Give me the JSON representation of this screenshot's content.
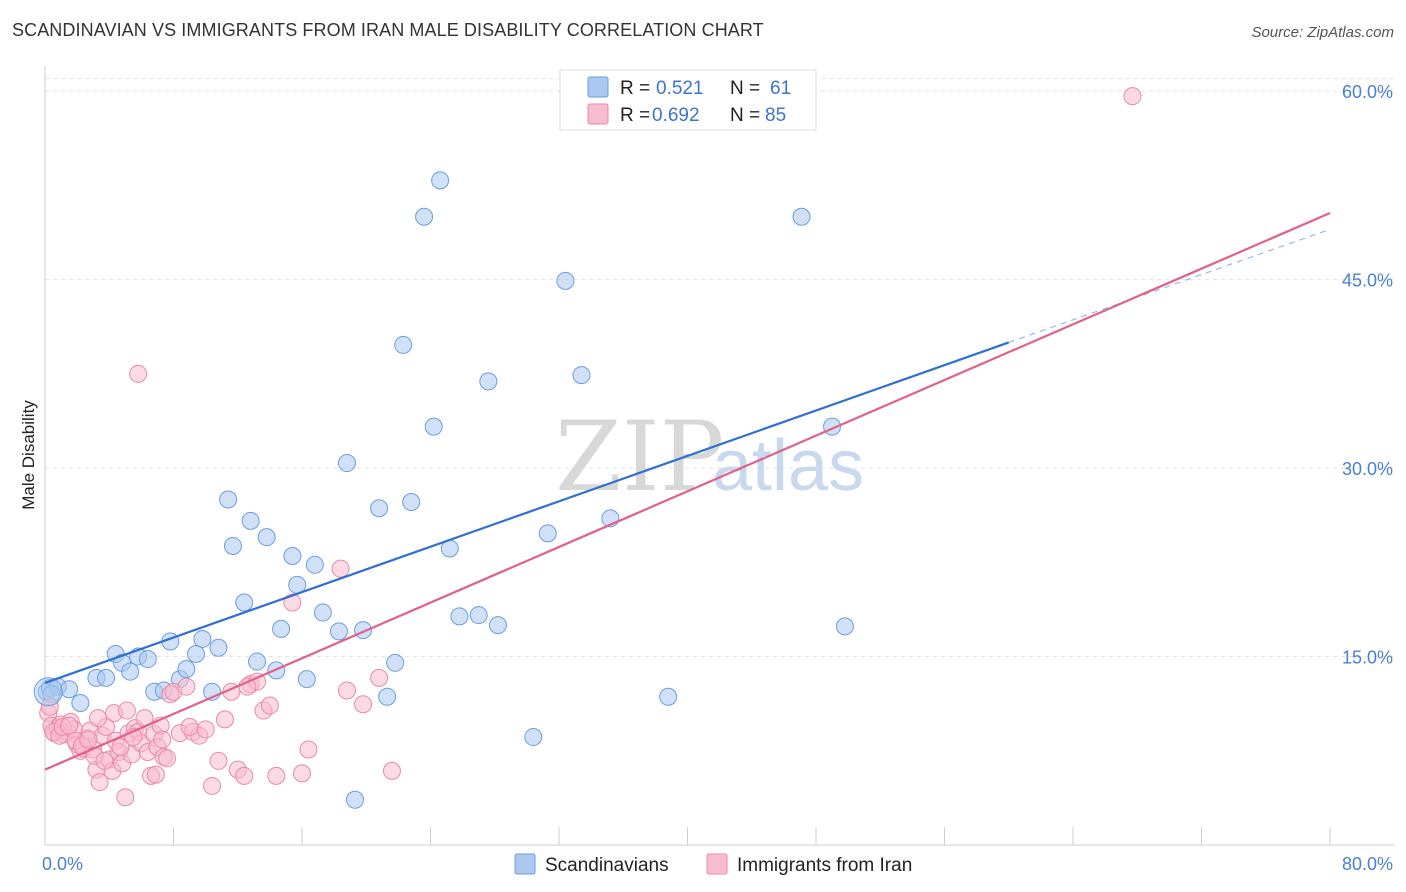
{
  "title": "SCANDINAVIAN VS IMMIGRANTS FROM IRAN MALE DISABILITY CORRELATION CHART",
  "source": "Source: ZipAtlas.com",
  "watermark": {
    "zip": "ZIP",
    "atlas": "atlas"
  },
  "legend": {
    "rows": [
      {
        "r_label": "R =",
        "r_value": "0.521",
        "n_label": "N =",
        "n_value": "61",
        "color": "#aac8f0",
        "stroke": "#6a9ee0"
      },
      {
        "r_label": "R =",
        "r_value": "0.692",
        "n_label": "N =",
        "n_value": "85",
        "color": "#f8bcd0",
        "stroke": "#e88aa8"
      }
    ]
  },
  "chart_data": {
    "type": "scatter",
    "title": "SCANDINAVIAN VS IMMIGRANTS FROM IRAN MALE DISABILITY CORRELATION CHART",
    "xlabel": "",
    "ylabel": "Male Disability",
    "xlim": [
      0,
      80
    ],
    "ylim": [
      0,
      62
    ],
    "x_tick_labels": [
      "0.0%",
      "80.0%"
    ],
    "y_ticks": [
      15,
      30,
      45,
      60
    ],
    "y_tick_labels": [
      "15.0%",
      "30.0%",
      "45.0%",
      "60.0%"
    ],
    "grid": true,
    "legend_position": "top-center",
    "series": [
      {
        "name": "Scandinavians",
        "color": "#aac8f0",
        "stroke": "#6a9ee0",
        "line_color": "#2f6fcf",
        "trend": {
          "x": [
            0,
            60
          ],
          "y": [
            12.9,
            40.0
          ],
          "dashed_to": [
            80,
            49.0
          ]
        },
        "points": [
          [
            0.1,
            12.2
          ],
          [
            0.3,
            12.5
          ],
          [
            0.8,
            12.6
          ],
          [
            1.5,
            12.4
          ],
          [
            2.2,
            11.3
          ],
          [
            3.2,
            13.3
          ],
          [
            3.8,
            13.3
          ],
          [
            4.4,
            15.2
          ],
          [
            4.8,
            14.5
          ],
          [
            5.3,
            13.8
          ],
          [
            5.8,
            15.0
          ],
          [
            6.4,
            14.8
          ],
          [
            6.8,
            12.2
          ],
          [
            7.4,
            12.3
          ],
          [
            7.8,
            16.2
          ],
          [
            8.4,
            13.2
          ],
          [
            8.8,
            14.0
          ],
          [
            9.4,
            15.2
          ],
          [
            9.8,
            16.4
          ],
          [
            10.4,
            12.2
          ],
          [
            10.8,
            15.7
          ],
          [
            11.4,
            27.5
          ],
          [
            11.7,
            23.8
          ],
          [
            12.4,
            19.3
          ],
          [
            12.8,
            25.8
          ],
          [
            13.2,
            14.6
          ],
          [
            13.8,
            24.5
          ],
          [
            14.4,
            13.9
          ],
          [
            14.7,
            17.2
          ],
          [
            15.4,
            23.0
          ],
          [
            15.7,
            20.7
          ],
          [
            16.3,
            13.2
          ],
          [
            16.8,
            22.3
          ],
          [
            17.3,
            18.5
          ],
          [
            18.3,
            17.0
          ],
          [
            18.8,
            30.4
          ],
          [
            19.8,
            17.1
          ],
          [
            20.8,
            26.8
          ],
          [
            21.3,
            11.8
          ],
          [
            21.8,
            14.5
          ],
          [
            22.3,
            39.8
          ],
          [
            22.8,
            27.3
          ],
          [
            23.6,
            50.0
          ],
          [
            24.2,
            33.3
          ],
          [
            24.6,
            52.9
          ],
          [
            25.2,
            23.6
          ],
          [
            25.8,
            18.2
          ],
          [
            27.0,
            18.3
          ],
          [
            27.6,
            36.9
          ],
          [
            28.2,
            17.5
          ],
          [
            30.4,
            8.6
          ],
          [
            31.3,
            24.8
          ],
          [
            32.4,
            44.9
          ],
          [
            33.4,
            37.4
          ],
          [
            35.2,
            26.0
          ],
          [
            38.8,
            11.8
          ],
          [
            47.1,
            50.0
          ],
          [
            49.0,
            33.3
          ],
          [
            49.8,
            17.4
          ],
          [
            19.3,
            3.6
          ],
          [
            0.4,
            12.0
          ]
        ]
      },
      {
        "name": "Immigrants from Iran",
        "color": "#f8bcd0",
        "stroke": "#e88aa8",
        "line_color": "#e0608a",
        "trend": {
          "x": [
            0,
            80
          ],
          "y": [
            6.0,
            50.3
          ]
        },
        "points": [
          [
            0.2,
            10.5
          ],
          [
            0.4,
            9.5
          ],
          [
            0.6,
            8.9
          ],
          [
            0.8,
            9.3
          ],
          [
            1.0,
            9.6
          ],
          [
            1.2,
            8.8
          ],
          [
            1.4,
            9.0
          ],
          [
            1.6,
            9.8
          ],
          [
            1.8,
            9.2
          ],
          [
            2.0,
            8.0
          ],
          [
            2.2,
            7.5
          ],
          [
            2.4,
            7.7
          ],
          [
            2.6,
            8.5
          ],
          [
            2.8,
            9.1
          ],
          [
            3.0,
            7.6
          ],
          [
            3.2,
            6.0
          ],
          [
            3.4,
            5.0
          ],
          [
            3.6,
            8.7
          ],
          [
            3.8,
            9.4
          ],
          [
            4.0,
            6.8
          ],
          [
            4.2,
            5.9
          ],
          [
            4.4,
            8.3
          ],
          [
            4.6,
            7.4
          ],
          [
            4.8,
            6.5
          ],
          [
            5.0,
            3.8
          ],
          [
            5.2,
            8.9
          ],
          [
            5.4,
            7.2
          ],
          [
            5.6,
            9.3
          ],
          [
            5.8,
            9.0
          ],
          [
            6.0,
            8.1
          ],
          [
            6.2,
            10.1
          ],
          [
            6.4,
            7.4
          ],
          [
            6.6,
            5.5
          ],
          [
            6.8,
            8.8
          ],
          [
            7.0,
            7.8
          ],
          [
            7.2,
            9.5
          ],
          [
            7.4,
            7.0
          ],
          [
            7.6,
            6.9
          ],
          [
            7.8,
            12.0
          ],
          [
            8.0,
            12.2
          ],
          [
            8.4,
            8.9
          ],
          [
            8.8,
            12.6
          ],
          [
            9.2,
            9.0
          ],
          [
            9.6,
            8.7
          ],
          [
            10.0,
            9.2
          ],
          [
            10.4,
            4.7
          ],
          [
            10.8,
            6.7
          ],
          [
            11.2,
            10.0
          ],
          [
            11.6,
            12.2
          ],
          [
            12.0,
            6.0
          ],
          [
            12.4,
            5.5
          ],
          [
            12.8,
            12.8
          ],
          [
            13.2,
            13.0
          ],
          [
            13.6,
            10.7
          ],
          [
            14.0,
            11.1
          ],
          [
            14.4,
            5.5
          ],
          [
            15.4,
            19.3
          ],
          [
            16.4,
            7.6
          ],
          [
            18.4,
            22.0
          ],
          [
            18.8,
            12.3
          ],
          [
            19.8,
            11.2
          ],
          [
            20.8,
            13.3
          ],
          [
            21.6,
            5.9
          ],
          [
            5.8,
            37.5
          ],
          [
            0.3,
            11.0
          ],
          [
            0.5,
            9.0
          ],
          [
            0.9,
            8.7
          ],
          [
            1.1,
            9.4
          ],
          [
            1.5,
            9.5
          ],
          [
            1.9,
            8.3
          ],
          [
            2.3,
            7.9
          ],
          [
            2.7,
            8.4
          ],
          [
            3.1,
            7.1
          ],
          [
            3.3,
            10.1
          ],
          [
            3.7,
            6.7
          ],
          [
            4.3,
            10.5
          ],
          [
            4.7,
            7.8
          ],
          [
            5.1,
            10.7
          ],
          [
            5.5,
            8.6
          ],
          [
            6.9,
            5.6
          ],
          [
            7.3,
            8.4
          ],
          [
            9.0,
            9.4
          ],
          [
            12.6,
            12.6
          ],
          [
            16.0,
            5.7
          ],
          [
            67.7,
            59.6
          ]
        ]
      }
    ]
  },
  "bottom_legend": [
    {
      "label": "Scandinavians",
      "color": "#aac8f0",
      "stroke": "#6a9ee0"
    },
    {
      "label": "Immigrants from Iran",
      "color": "#f8bcd0",
      "stroke": "#e88aa8"
    }
  ]
}
